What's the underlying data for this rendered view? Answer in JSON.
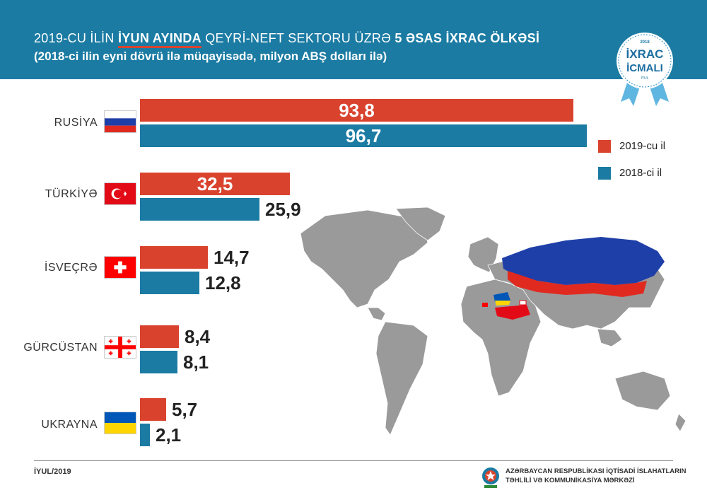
{
  "header": {
    "title_part1": "2019-CU İLİN ",
    "title_highlight": "İYUN AYINDA",
    "title_part2": "  QEYRİ-NEFT SEKTORU ÜZRƏ ",
    "title_bold": "5 ƏSAS İXRAC ÖLKƏSİ",
    "subtitle": "(2018-ci ilin eyni dövrü ilə müqayisədə, milyon ABŞ dolları ilə)"
  },
  "badge": {
    "year": "2018",
    "line1": "İXRAC",
    "line2": "İCMALI",
    "month": "İYUL"
  },
  "legend": [
    {
      "label": "2019-cu il",
      "color": "#d9432e"
    },
    {
      "label": "2018-ci il",
      "color": "#1b7ba3"
    }
  ],
  "chart_data": {
    "type": "bar",
    "orientation": "horizontal",
    "categories": [
      "RUSİYA",
      "TÜRKİYƏ",
      "İSVEÇRƏ",
      "GÜRCÜSTAN",
      "UKRAYNA"
    ],
    "series": [
      {
        "name": "2019-cu il",
        "color": "#d9432e",
        "values": [
          93.8,
          32.5,
          14.7,
          8.4,
          5.7
        ],
        "labels": [
          "93,8",
          "32,5",
          "14,7",
          "8,4",
          "5,7"
        ]
      },
      {
        "name": "2018-ci il",
        "color": "#1b7ba3",
        "values": [
          96.7,
          25.9,
          12.8,
          8.1,
          2.1
        ],
        "labels": [
          "96,7",
          "25,9",
          "12,8",
          "8,1",
          "2,1"
        ]
      }
    ],
    "xlim": [
      0,
      96.7
    ]
  },
  "footer": {
    "date": "İYUL/2019",
    "org_line1": "AZƏRBAYCAN RESPUBLİKASI İQTİSADİ İSLAHATLARIN",
    "org_line2": "TƏHLİLİ VƏ KOMMUNİKASİYA MƏRKƏZİ"
  }
}
